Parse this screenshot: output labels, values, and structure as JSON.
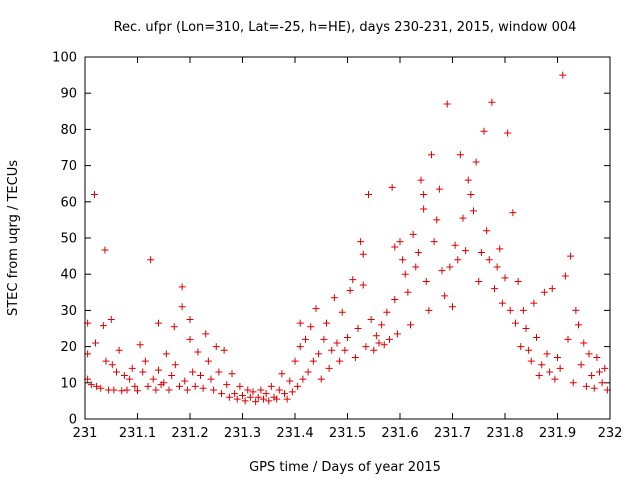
{
  "chart_data": {
    "type": "scatter",
    "title": "Rec. ufpr (Lon=310, Lat=-25, h=HE), days 230-231, 2015, window 004",
    "xlabel": "GPS time / Days of year 2015",
    "ylabel": "STEC from uqrg / TECUs",
    "xlim": [
      231,
      232
    ],
    "ylim": [
      0,
      100
    ],
    "grid": false,
    "marker": "+",
    "color": "#dd0000",
    "x_ticks": [
      {
        "value": 231,
        "label": "231"
      },
      {
        "value": 231.1,
        "label": "231.1"
      },
      {
        "value": 231.2,
        "label": "231.2"
      },
      {
        "value": 231.3,
        "label": "231.3"
      },
      {
        "value": 231.4,
        "label": "231.4"
      },
      {
        "value": 231.5,
        "label": "231.5"
      },
      {
        "value": 231.6,
        "label": "231.6"
      },
      {
        "value": 231.7,
        "label": "231.7"
      },
      {
        "value": 231.8,
        "label": "231.8"
      },
      {
        "value": 231.9,
        "label": "231.9"
      },
      {
        "value": 232,
        "label": "232"
      }
    ],
    "y_ticks": [
      {
        "value": 0,
        "label": "0"
      },
      {
        "value": 10,
        "label": "10"
      },
      {
        "value": 20,
        "label": "20"
      },
      {
        "value": 30,
        "label": "30"
      },
      {
        "value": 40,
        "label": "40"
      },
      {
        "value": 50,
        "label": "50"
      },
      {
        "value": 60,
        "label": "60"
      },
      {
        "value": 70,
        "label": "70"
      },
      {
        "value": 80,
        "label": "80"
      },
      {
        "value": 90,
        "label": "90"
      },
      {
        "value": 100,
        "label": "100"
      }
    ],
    "series": [
      {
        "name": "STEC",
        "points": [
          [
            231.005,
            26.5
          ],
          [
            231.005,
            18
          ],
          [
            231.005,
            11
          ],
          [
            231.012,
            9.5
          ],
          [
            231.018,
            62
          ],
          [
            231.02,
            21
          ],
          [
            231.022,
            9
          ],
          [
            231.03,
            8.5
          ],
          [
            231.035,
            25.8
          ],
          [
            231.038,
            46.7
          ],
          [
            231.04,
            16
          ],
          [
            231.045,
            8
          ],
          [
            231.05,
            27.5
          ],
          [
            231.052,
            15
          ],
          [
            231.055,
            8
          ],
          [
            231.06,
            13
          ],
          [
            231.065,
            19
          ],
          [
            231.07,
            7.8
          ],
          [
            231.075,
            12
          ],
          [
            231.08,
            8
          ],
          [
            231.085,
            11
          ],
          [
            231.09,
            14
          ],
          [
            231.095,
            9
          ],
          [
            231.1,
            7.8
          ],
          [
            231.105,
            20.5
          ],
          [
            231.11,
            13
          ],
          [
            231.115,
            16
          ],
          [
            231.12,
            9
          ],
          [
            231.125,
            44
          ],
          [
            231.13,
            11
          ],
          [
            231.135,
            8
          ],
          [
            231.14,
            26.5
          ],
          [
            231.14,
            13.5
          ],
          [
            231.145,
            9.5
          ],
          [
            231.15,
            10
          ],
          [
            231.155,
            18
          ],
          [
            231.16,
            8
          ],
          [
            231.165,
            12
          ],
          [
            231.17,
            25.5
          ],
          [
            231.172,
            15
          ],
          [
            231.18,
            9
          ],
          [
            231.185,
            36.5
          ],
          [
            231.185,
            31
          ],
          [
            231.19,
            10.5
          ],
          [
            231.195,
            8
          ],
          [
            231.2,
            27.5
          ],
          [
            231.2,
            22
          ],
          [
            231.205,
            13
          ],
          [
            231.21,
            9
          ],
          [
            231.215,
            18.5
          ],
          [
            231.22,
            12
          ],
          [
            231.225,
            8.5
          ],
          [
            231.23,
            23.5
          ],
          [
            231.235,
            16
          ],
          [
            231.24,
            11
          ],
          [
            231.245,
            8
          ],
          [
            231.25,
            20
          ],
          [
            231.255,
            13
          ],
          [
            231.26,
            7
          ],
          [
            231.265,
            19
          ],
          [
            231.27,
            9.5
          ],
          [
            231.275,
            6
          ],
          [
            231.28,
            12.5
          ],
          [
            231.285,
            7
          ],
          [
            231.29,
            5.5
          ],
          [
            231.295,
            9
          ],
          [
            231.3,
            6.5
          ],
          [
            231.305,
            5
          ],
          [
            231.31,
            8
          ],
          [
            231.315,
            6
          ],
          [
            231.32,
            7.5
          ],
          [
            231.325,
            4.8
          ],
          [
            231.33,
            6
          ],
          [
            231.335,
            8
          ],
          [
            231.34,
            5.5
          ],
          [
            231.345,
            7
          ],
          [
            231.35,
            5
          ],
          [
            231.355,
            9
          ],
          [
            231.36,
            6
          ],
          [
            231.365,
            5.5
          ],
          [
            231.37,
            8
          ],
          [
            231.375,
            12.5
          ],
          [
            231.38,
            7
          ],
          [
            231.385,
            5.5
          ],
          [
            231.39,
            10.5
          ],
          [
            231.395,
            7.5
          ],
          [
            231.4,
            16
          ],
          [
            231.405,
            9
          ],
          [
            231.41,
            26.5
          ],
          [
            231.41,
            20
          ],
          [
            231.415,
            11
          ],
          [
            231.42,
            22
          ],
          [
            231.425,
            13
          ],
          [
            231.43,
            25.5
          ],
          [
            231.435,
            16
          ],
          [
            231.44,
            30.5
          ],
          [
            231.445,
            18
          ],
          [
            231.45,
            11
          ],
          [
            231.455,
            22
          ],
          [
            231.46,
            26.5
          ],
          [
            231.465,
            14
          ],
          [
            231.47,
            19
          ],
          [
            231.475,
            33.5
          ],
          [
            231.48,
            21
          ],
          [
            231.485,
            16
          ],
          [
            231.49,
            29.5
          ],
          [
            231.495,
            19
          ],
          [
            231.5,
            22.5
          ],
          [
            231.505,
            35.5
          ],
          [
            231.51,
            38.5
          ],
          [
            231.515,
            17
          ],
          [
            231.52,
            25
          ],
          [
            231.525,
            49
          ],
          [
            231.53,
            45.5
          ],
          [
            231.53,
            37
          ],
          [
            231.535,
            20
          ],
          [
            231.54,
            62
          ],
          [
            231.545,
            27.5
          ],
          [
            231.55,
            19
          ],
          [
            231.555,
            23
          ],
          [
            231.56,
            21
          ],
          [
            231.565,
            26
          ],
          [
            231.57,
            20.5
          ],
          [
            231.575,
            29.5
          ],
          [
            231.58,
            22
          ],
          [
            231.585,
            64
          ],
          [
            231.59,
            47.5
          ],
          [
            231.59,
            33
          ],
          [
            231.595,
            23.5
          ],
          [
            231.6,
            49
          ],
          [
            231.605,
            44
          ],
          [
            231.61,
            40
          ],
          [
            231.615,
            35
          ],
          [
            231.62,
            26
          ],
          [
            231.625,
            51
          ],
          [
            231.63,
            42
          ],
          [
            231.635,
            46
          ],
          [
            231.64,
            66
          ],
          [
            231.645,
            58
          ],
          [
            231.645,
            62
          ],
          [
            231.65,
            38
          ],
          [
            231.655,
            30
          ],
          [
            231.66,
            73
          ],
          [
            231.665,
            49
          ],
          [
            231.67,
            55
          ],
          [
            231.675,
            63.5
          ],
          [
            231.68,
            41
          ],
          [
            231.685,
            34
          ],
          [
            231.69,
            87
          ],
          [
            231.695,
            42
          ],
          [
            231.7,
            31
          ],
          [
            231.705,
            48
          ],
          [
            231.71,
            44
          ],
          [
            231.715,
            73
          ],
          [
            231.72,
            55.5
          ],
          [
            231.725,
            46.5
          ],
          [
            231.73,
            66
          ],
          [
            231.735,
            62
          ],
          [
            231.74,
            57.5
          ],
          [
            231.745,
            71
          ],
          [
            231.75,
            38
          ],
          [
            231.755,
            46
          ],
          [
            231.76,
            79.5
          ],
          [
            231.765,
            52
          ],
          [
            231.77,
            44
          ],
          [
            231.775,
            87.5
          ],
          [
            231.78,
            36
          ],
          [
            231.785,
            42
          ],
          [
            231.79,
            47
          ],
          [
            231.795,
            32
          ],
          [
            231.8,
            39
          ],
          [
            231.805,
            79
          ],
          [
            231.81,
            30
          ],
          [
            231.815,
            57
          ],
          [
            231.82,
            26.5
          ],
          [
            231.825,
            38
          ],
          [
            231.83,
            20
          ],
          [
            231.835,
            30
          ],
          [
            231.84,
            25
          ],
          [
            231.845,
            19
          ],
          [
            231.85,
            16
          ],
          [
            231.855,
            32
          ],
          [
            231.86,
            22.5
          ],
          [
            231.865,
            12
          ],
          [
            231.87,
            15
          ],
          [
            231.875,
            35
          ],
          [
            231.88,
            18
          ],
          [
            231.885,
            13
          ],
          [
            231.89,
            36
          ],
          [
            231.895,
            11
          ],
          [
            231.9,
            17
          ],
          [
            231.905,
            14
          ],
          [
            231.91,
            95
          ],
          [
            231.915,
            39.5
          ],
          [
            231.92,
            22
          ],
          [
            231.925,
            45
          ],
          [
            231.93,
            10
          ],
          [
            231.935,
            30
          ],
          [
            231.94,
            26
          ],
          [
            231.945,
            15
          ],
          [
            231.95,
            21
          ],
          [
            231.955,
            9
          ],
          [
            231.96,
            18
          ],
          [
            231.965,
            12
          ],
          [
            231.97,
            8.5
          ],
          [
            231.975,
            17
          ],
          [
            231.98,
            13
          ],
          [
            231.985,
            10
          ],
          [
            231.99,
            14
          ],
          [
            231.995,
            8
          ]
        ]
      }
    ]
  }
}
